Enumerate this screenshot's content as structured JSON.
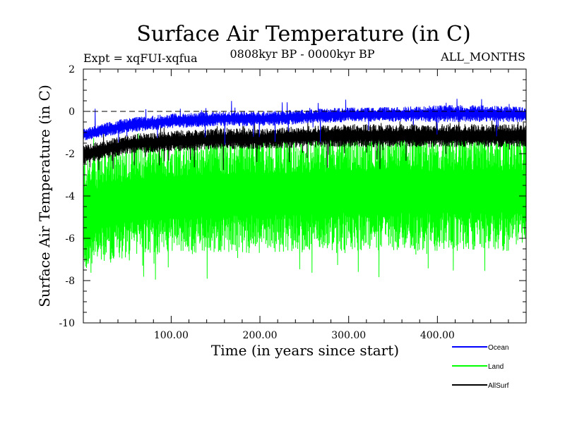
{
  "chart_data": {
    "type": "line",
    "title": "Surface Air Temperature (in C)",
    "subtitle_left": "Expt = xqFUI-xqfua",
    "subtitle_center": "0808kyr BP - 0000kyr BP",
    "subtitle_right": "ALL_MONTHS",
    "xlabel": "Time (in years since start)",
    "ylabel": "Surface Air Temperature (in C)",
    "xlim": [
      1,
      500
    ],
    "ylim": [
      -10,
      2
    ],
    "x_ticks": [
      {
        "value": 100,
        "label": "100.00"
      },
      {
        "value": 200,
        "label": "200.00"
      },
      {
        "value": 300,
        "label": "300.00"
      },
      {
        "value": 400,
        "label": "400.00"
      }
    ],
    "y_ticks": [
      {
        "value": 2,
        "label": "2"
      },
      {
        "value": 0,
        "label": "0"
      },
      {
        "value": -2,
        "label": "-2"
      },
      {
        "value": -4,
        "label": "-4"
      },
      {
        "value": -6,
        "label": "-6"
      },
      {
        "value": -8,
        "label": "-8"
      },
      {
        "value": -10,
        "label": "-10"
      }
    ],
    "zero_line": 0,
    "legend_position": "bottom-right",
    "series": [
      {
        "name": "Land",
        "color": "#00ff00",
        "band_low": [
          -7.6,
          -6.9,
          -6.8,
          -6.7,
          -6.7,
          -6.7,
          -6.6,
          -6.6,
          -6.6,
          -6.6,
          -6.6
        ],
        "band_high": [
          -2.0,
          -1.5,
          -1.3,
          -1.2,
          -1.1,
          -1.1,
          -1.0,
          -1.0,
          -1.0,
          -1.0,
          -1.0
        ],
        "extreme_min": -8.0,
        "extreme_max": -0.9
      },
      {
        "name": "AllSurf",
        "color": "#000000",
        "band_low": [
          -2.5,
          -2.0,
          -1.9,
          -1.8,
          -1.8,
          -1.7,
          -1.7,
          -1.7,
          -1.7,
          -1.7,
          -1.7
        ],
        "band_high": [
          -1.6,
          -1.1,
          -0.9,
          -0.8,
          -0.8,
          -0.7,
          -0.6,
          -0.6,
          -0.6,
          -0.6,
          -0.6
        ],
        "extreme_min": -2.8,
        "extreme_max": -0.4
      },
      {
        "name": "Ocean",
        "color": "#0000ff",
        "band_low": [
          -1.4,
          -1.0,
          -0.8,
          -0.7,
          -0.7,
          -0.6,
          -0.5,
          -0.5,
          -0.5,
          -0.5,
          -0.5
        ],
        "band_high": [
          -0.8,
          -0.3,
          -0.1,
          0.0,
          0.0,
          0.1,
          0.2,
          0.2,
          0.3,
          0.3,
          0.2
        ],
        "extreme_min": -1.6,
        "extreme_max": 0.6
      }
    ],
    "legend": [
      {
        "name": "Ocean",
        "color": "#0000ff"
      },
      {
        "name": "Land",
        "color": "#00ff00"
      },
      {
        "name": "AllSurf",
        "color": "#000000"
      }
    ]
  }
}
